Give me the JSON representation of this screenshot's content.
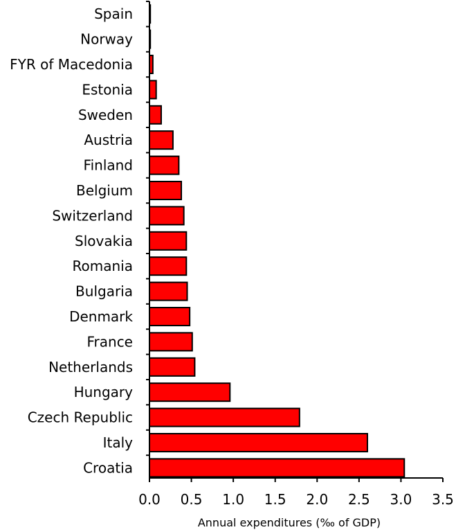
{
  "chart_data": {
    "type": "bar",
    "orientation": "horizontal",
    "categories": [
      "Spain",
      "Norway",
      "FYR of Macedonia",
      "Estonia",
      "Sweden",
      "Austria",
      "Finland",
      "Belgium",
      "Switzerland",
      "Slovakia",
      "Romania",
      "Bulgaria",
      "Denmark",
      "France",
      "Netherlands",
      "Hungary",
      "Czech Republic",
      "Italy",
      "Croatia"
    ],
    "values": [
      0.01,
      0.01,
      0.04,
      0.08,
      0.14,
      0.28,
      0.35,
      0.38,
      0.41,
      0.44,
      0.44,
      0.45,
      0.48,
      0.51,
      0.54,
      0.96,
      1.79,
      2.6,
      3.04
    ],
    "title": "",
    "xlabel": "Annual expenditures (‰ of GDP)",
    "ylabel": "",
    "xlim": [
      0,
      3.5
    ],
    "xticks": [
      "0.0",
      "0.5",
      "1.0",
      "1.5",
      "2.0",
      "2.5",
      "3.0",
      "3.5"
    ],
    "grid": false,
    "bar_color": "#ff0000",
    "bar_edge_color": "#000000"
  }
}
